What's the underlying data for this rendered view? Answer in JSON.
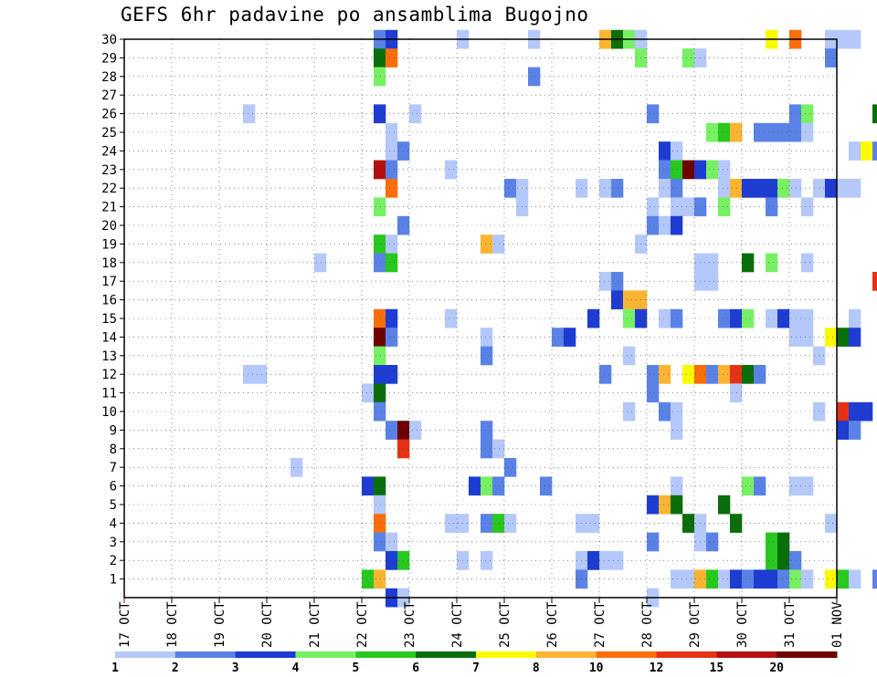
{
  "chart_data": {
    "type": "heatmap",
    "title": "GEFS 6hr padavine po ansamblima Bugojno",
    "y_ticks": [
      "1",
      "2",
      "3",
      "4",
      "5",
      "6",
      "7",
      "8",
      "9",
      "10",
      "11",
      "12",
      "13",
      "14",
      "15",
      "16",
      "17",
      "18",
      "19",
      "20",
      "21",
      "22",
      "23",
      "24",
      "25",
      "26",
      "27",
      "28",
      "29",
      "30"
    ],
    "x_ticks": [
      "17 OCT",
      "18 OCT",
      "19 OCT",
      "20 OCT",
      "21 OCT",
      "22 OCT",
      "23 OCT",
      "24 OCT",
      "25 OCT",
      "26 OCT",
      "27 OCT",
      "28 OCT",
      "29 OCT",
      "30 OCT",
      "31 OCT",
      "01 NOV"
    ],
    "x_start": "2020-10-17",
    "steps_per_day": 4,
    "grid": true,
    "colorbar": {
      "labels": [
        "1",
        "2",
        "3",
        "4",
        "5",
        "6",
        "7",
        "8",
        "10",
        "12",
        "15",
        "20"
      ],
      "colors": [
        "#b4c8fa",
        "#5a82e6",
        "#1e3cd2",
        "#78f064",
        "#28c81e",
        "#0a6e0a",
        "#fafa00",
        "#fab432",
        "#fa6e0a",
        "#e63214",
        "#b40f0f",
        "#6e0000"
      ]
    },
    "cells_legend": "each cell: [member (y), 6h step index from 17 OCT 00Z, color class 0-11]",
    "cells": [
      [
        30,
        21,
        1
      ],
      [
        30,
        22,
        2
      ],
      [
        30,
        28,
        0
      ],
      [
        30,
        34,
        0
      ],
      [
        30,
        40,
        7
      ],
      [
        30,
        41,
        5
      ],
      [
        30,
        42,
        3
      ],
      [
        30,
        43,
        0
      ],
      [
        30,
        54,
        6
      ],
      [
        30,
        56,
        8
      ],
      [
        30,
        59,
        0
      ],
      [
        30,
        60,
        0
      ],
      [
        30,
        61,
        0
      ],
      [
        30,
        66,
        1
      ],
      [
        29,
        21,
        5
      ],
      [
        29,
        22,
        8
      ],
      [
        29,
        43,
        3
      ],
      [
        29,
        47,
        3
      ],
      [
        29,
        48,
        0
      ],
      [
        29,
        59,
        1
      ],
      [
        28,
        21,
        3
      ],
      [
        28,
        34,
        1
      ],
      [
        26,
        10,
        0
      ],
      [
        26,
        21,
        2
      ],
      [
        26,
        24,
        0
      ],
      [
        26,
        44,
        1
      ],
      [
        26,
        56,
        1
      ],
      [
        26,
        57,
        3
      ],
      [
        26,
        63,
        5
      ],
      [
        25,
        22,
        0
      ],
      [
        25,
        49,
        3
      ],
      [
        25,
        50,
        4
      ],
      [
        25,
        51,
        7
      ],
      [
        25,
        53,
        1
      ],
      [
        25,
        54,
        1
      ],
      [
        25,
        55,
        1
      ],
      [
        25,
        56,
        1
      ],
      [
        25,
        57,
        0
      ],
      [
        25,
        66,
        0
      ],
      [
        25,
        67,
        0
      ],
      [
        24,
        22,
        0
      ],
      [
        24,
        23,
        1
      ],
      [
        24,
        45,
        2
      ],
      [
        24,
        46,
        0
      ],
      [
        24,
        61,
        0
      ],
      [
        24,
        62,
        6
      ],
      [
        24,
        63,
        1
      ],
      [
        23,
        21,
        10
      ],
      [
        23,
        22,
        1
      ],
      [
        23,
        27,
        0
      ],
      [
        23,
        45,
        1
      ],
      [
        23,
        46,
        4
      ],
      [
        23,
        47,
        11
      ],
      [
        23,
        48,
        2
      ],
      [
        23,
        49,
        3
      ],
      [
        23,
        50,
        0
      ],
      [
        23,
        64,
        0
      ],
      [
        23,
        65,
        8
      ],
      [
        23,
        66,
        9
      ],
      [
        23,
        67,
        1
      ],
      [
        22,
        22,
        8
      ],
      [
        22,
        32,
        1
      ],
      [
        22,
        33,
        0
      ],
      [
        22,
        38,
        0
      ],
      [
        22,
        40,
        0
      ],
      [
        22,
        41,
        1
      ],
      [
        22,
        45,
        0
      ],
      [
        22,
        46,
        1
      ],
      [
        22,
        50,
        0
      ],
      [
        22,
        51,
        7
      ],
      [
        22,
        52,
        2
      ],
      [
        22,
        53,
        2
      ],
      [
        22,
        54,
        2
      ],
      [
        22,
        55,
        3
      ],
      [
        22,
        56,
        0
      ],
      [
        22,
        58,
        0
      ],
      [
        22,
        59,
        2
      ],
      [
        22,
        60,
        0
      ],
      [
        22,
        61,
        0
      ],
      [
        21,
        21,
        3
      ],
      [
        21,
        33,
        0
      ],
      [
        21,
        44,
        0
      ],
      [
        21,
        46,
        0
      ],
      [
        21,
        47,
        0
      ],
      [
        21,
        48,
        1
      ],
      [
        21,
        50,
        3
      ],
      [
        21,
        54,
        1
      ],
      [
        21,
        57,
        0
      ],
      [
        21,
        66,
        3
      ],
      [
        21,
        67,
        0
      ],
      [
        21,
        68,
        7
      ],
      [
        20,
        23,
        1
      ],
      [
        20,
        44,
        1
      ],
      [
        20,
        45,
        0
      ],
      [
        20,
        46,
        2
      ],
      [
        20,
        66,
        0
      ],
      [
        19,
        21,
        4
      ],
      [
        19,
        22,
        0
      ],
      [
        19,
        30,
        7
      ],
      [
        19,
        31,
        0
      ],
      [
        19,
        43,
        0
      ],
      [
        19,
        66,
        0
      ],
      [
        19,
        67,
        1
      ],
      [
        19,
        68,
        10
      ],
      [
        18,
        16,
        0
      ],
      [
        18,
        21,
        1
      ],
      [
        18,
        22,
        4
      ],
      [
        18,
        48,
        0
      ],
      [
        18,
        49,
        0
      ],
      [
        18,
        52,
        5
      ],
      [
        18,
        54,
        3
      ],
      [
        18,
        57,
        0
      ],
      [
        17,
        40,
        0
      ],
      [
        17,
        41,
        1
      ],
      [
        17,
        48,
        0
      ],
      [
        17,
        49,
        0
      ],
      [
        17,
        63,
        9
      ],
      [
        17,
        64,
        0
      ],
      [
        16,
        41,
        2
      ],
      [
        16,
        42,
        7
      ],
      [
        16,
        43,
        7
      ],
      [
        15,
        21,
        8
      ],
      [
        15,
        22,
        2
      ],
      [
        15,
        39,
        2
      ],
      [
        15,
        42,
        3
      ],
      [
        15,
        43,
        2
      ],
      [
        15,
        45,
        0
      ],
      [
        15,
        46,
        1
      ],
      [
        15,
        50,
        1
      ],
      [
        15,
        51,
        2
      ],
      [
        15,
        52,
        3
      ],
      [
        15,
        54,
        0
      ],
      [
        15,
        55,
        2
      ],
      [
        15,
        56,
        0
      ],
      [
        15,
        57,
        0
      ],
      [
        15,
        61,
        0
      ],
      [
        15,
        67,
        7
      ],
      [
        15,
        27,
        0
      ],
      [
        14,
        21,
        11
      ],
      [
        14,
        22,
        1
      ],
      [
        14,
        30,
        0
      ],
      [
        14,
        36,
        1
      ],
      [
        14,
        37,
        2
      ],
      [
        14,
        56,
        0
      ],
      [
        14,
        57,
        0
      ],
      [
        14,
        59,
        6
      ],
      [
        14,
        60,
        5
      ],
      [
        14,
        61,
        2
      ],
      [
        13,
        21,
        3
      ],
      [
        13,
        30,
        1
      ],
      [
        13,
        42,
        0
      ],
      [
        13,
        58,
        0
      ],
      [
        12,
        10,
        0
      ],
      [
        12,
        11,
        0
      ],
      [
        12,
        21,
        2
      ],
      [
        12,
        22,
        2
      ],
      [
        12,
        40,
        1
      ],
      [
        12,
        44,
        1
      ],
      [
        12,
        45,
        7
      ],
      [
        12,
        47,
        6
      ],
      [
        12,
        48,
        8
      ],
      [
        12,
        49,
        1
      ],
      [
        12,
        50,
        7
      ],
      [
        12,
        51,
        9
      ],
      [
        12,
        52,
        5
      ],
      [
        12,
        53,
        1
      ],
      [
        11,
        20,
        0
      ],
      [
        11,
        21,
        5
      ],
      [
        11,
        44,
        1
      ],
      [
        11,
        51,
        0
      ],
      [
        10,
        21,
        1
      ],
      [
        10,
        42,
        0
      ],
      [
        10,
        45,
        1
      ],
      [
        10,
        46,
        0
      ],
      [
        10,
        58,
        0
      ],
      [
        10,
        60,
        9
      ],
      [
        10,
        61,
        2
      ],
      [
        10,
        62,
        2
      ],
      [
        9,
        22,
        1
      ],
      [
        9,
        23,
        11
      ],
      [
        9,
        24,
        0
      ],
      [
        9,
        30,
        1
      ],
      [
        9,
        46,
        0
      ],
      [
        9,
        60,
        2
      ],
      [
        9,
        61,
        1
      ],
      [
        8,
        23,
        9
      ],
      [
        8,
        30,
        1
      ],
      [
        8,
        31,
        0
      ],
      [
        7,
        14,
        0
      ],
      [
        7,
        32,
        1
      ],
      [
        6,
        20,
        2
      ],
      [
        6,
        21,
        5
      ],
      [
        6,
        29,
        2
      ],
      [
        6,
        30,
        3
      ],
      [
        6,
        31,
        1
      ],
      [
        6,
        35,
        1
      ],
      [
        6,
        46,
        0
      ],
      [
        6,
        52,
        3
      ],
      [
        6,
        53,
        1
      ],
      [
        6,
        56,
        0
      ],
      [
        6,
        57,
        0
      ],
      [
        6,
        67,
        0
      ],
      [
        5,
        21,
        0
      ],
      [
        5,
        44,
        2
      ],
      [
        5,
        45,
        7
      ],
      [
        5,
        46,
        5
      ],
      [
        5,
        50,
        5
      ],
      [
        5,
        66,
        7
      ],
      [
        5,
        67,
        11
      ],
      [
        4,
        21,
        8
      ],
      [
        4,
        27,
        0
      ],
      [
        4,
        28,
        0
      ],
      [
        4,
        30,
        1
      ],
      [
        4,
        31,
        4
      ],
      [
        4,
        32,
        0
      ],
      [
        4,
        38,
        0
      ],
      [
        4,
        39,
        0
      ],
      [
        4,
        47,
        5
      ],
      [
        4,
        48,
        0
      ],
      [
        4,
        51,
        5
      ],
      [
        4,
        59,
        0
      ],
      [
        4,
        68,
        0
      ],
      [
        3,
        21,
        1
      ],
      [
        3,
        22,
        0
      ],
      [
        3,
        44,
        1
      ],
      [
        3,
        48,
        0
      ],
      [
        3,
        49,
        1
      ],
      [
        3,
        54,
        4
      ],
      [
        3,
        55,
        5
      ],
      [
        2,
        22,
        2
      ],
      [
        2,
        23,
        4
      ],
      [
        2,
        28,
        0
      ],
      [
        2,
        30,
        0
      ],
      [
        2,
        38,
        0
      ],
      [
        2,
        39,
        2
      ],
      [
        2,
        40,
        0
      ],
      [
        2,
        41,
        0
      ],
      [
        2,
        54,
        4
      ],
      [
        2,
        55,
        5
      ],
      [
        2,
        56,
        1
      ],
      [
        1,
        20,
        4
      ],
      [
        1,
        21,
        7
      ],
      [
        1,
        38,
        1
      ],
      [
        1,
        46,
        0
      ],
      [
        1,
        47,
        0
      ],
      [
        1,
        48,
        7
      ],
      [
        1,
        49,
        4
      ],
      [
        1,
        50,
        0
      ],
      [
        1,
        51,
        2
      ],
      [
        1,
        52,
        1
      ],
      [
        1,
        53,
        2
      ],
      [
        1,
        54,
        2
      ],
      [
        1,
        55,
        1
      ],
      [
        1,
        56,
        3
      ],
      [
        1,
        57,
        0
      ],
      [
        1,
        59,
        6
      ],
      [
        1,
        60,
        4
      ],
      [
        1,
        61,
        0
      ],
      [
        1,
        63,
        1
      ],
      [
        1,
        68,
        8
      ],
      [
        0,
        22,
        2
      ],
      [
        0,
        23,
        0
      ],
      [
        0,
        44,
        0
      ]
    ]
  }
}
